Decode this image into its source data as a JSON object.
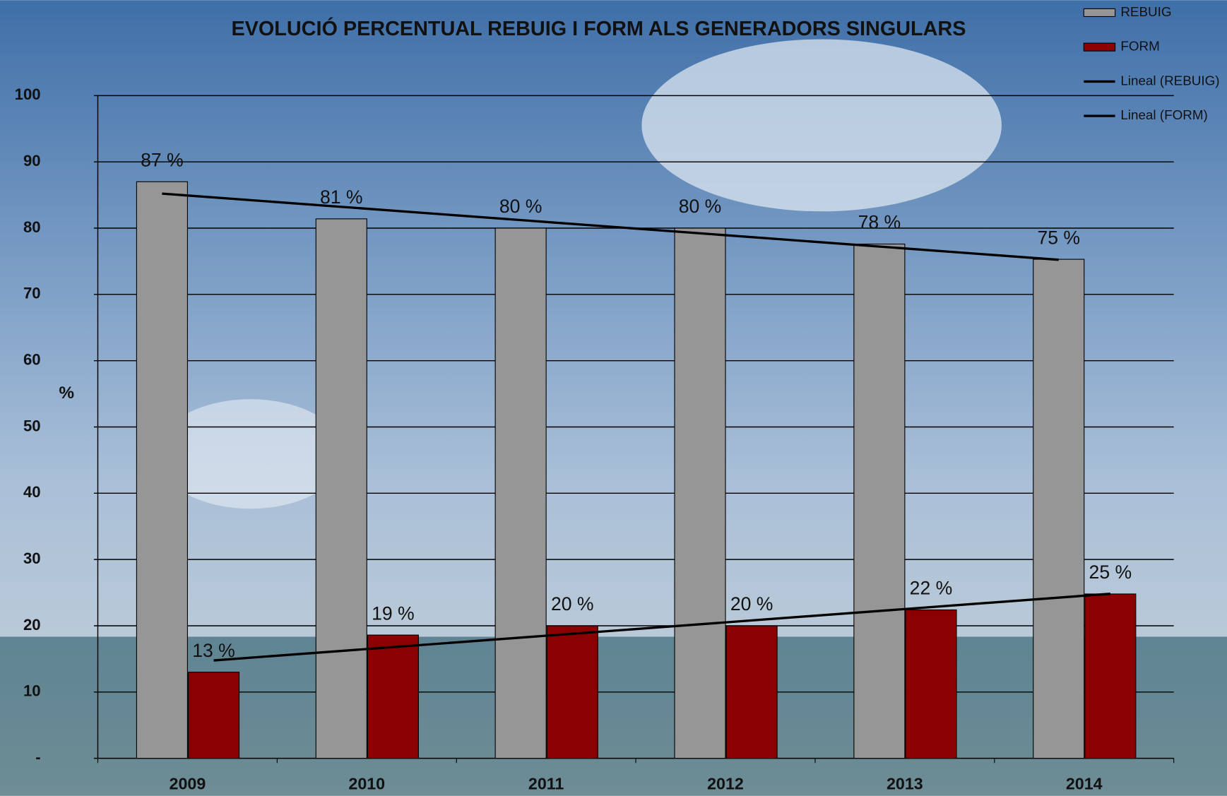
{
  "chart_data": {
    "type": "bar",
    "title": "EVOLUCIÓ PERCENTUAL REBUIG I FORM ALS GENERADORS SINGULARS",
    "y_label": "%",
    "categories": [
      "2009",
      "2010",
      "2011",
      "2012",
      "2013",
      "2014"
    ],
    "series": [
      {
        "name": "REBUIG",
        "color": "#969696",
        "values": [
          87,
          81.4,
          80,
          80,
          77.6,
          75.3
        ],
        "value_labels": [
          "87 %",
          "81 %",
          "80 %",
          "80 %",
          "78 %",
          "75 %"
        ],
        "trendline": {
          "type": "linear",
          "name": "Lineal (REBUIG)",
          "color": "#000000"
        }
      },
      {
        "name": "FORM",
        "color": "#8b0000",
        "values": [
          13,
          18.6,
          20,
          20,
          22.4,
          24.8
        ],
        "value_labels": [
          "13 %",
          "19 %",
          "20 %",
          "20 %",
          "22 %",
          "25 %"
        ],
        "trendline": {
          "type": "linear",
          "name": "Lineal (FORM)",
          "color": "#000000"
        }
      }
    ],
    "ylim": [
      0,
      100
    ],
    "yticks": [
      {
        "value": 0,
        "label": "-"
      },
      10,
      20,
      30,
      40,
      50,
      60,
      70,
      80,
      90,
      100
    ],
    "grid": true
  }
}
